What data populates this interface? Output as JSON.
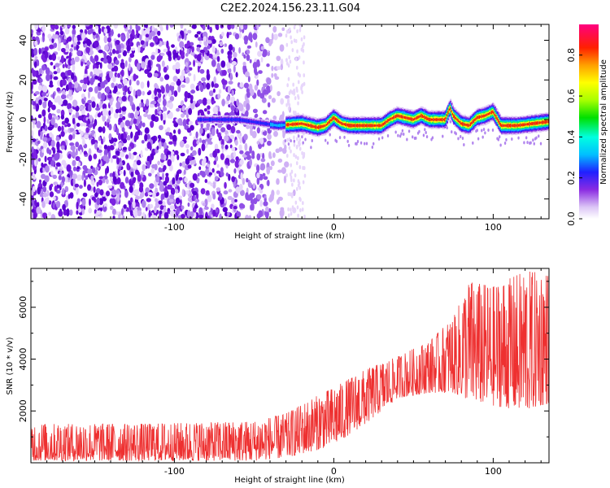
{
  "title": "C2E2.2024.156.23.11.G04",
  "chart_data": [
    {
      "type": "heatmap",
      "title": "C2E2.2024.156.23.11.G04",
      "xlabel": "Height of straight line (km)",
      "ylabel": "Frequency (Hz)",
      "xlim": [
        -190,
        135
      ],
      "ylim": [
        -50,
        48
      ],
      "xticks": [
        -100,
        0,
        100
      ],
      "yticks": [
        -40,
        -20,
        0,
        20,
        40
      ],
      "noise_edge_km": -30,
      "signal_start_km": -85,
      "trace_freq": [
        {
          "x": -85,
          "y": 0
        },
        {
          "x": -60,
          "y": 0
        },
        {
          "x": -35,
          "y": -3
        },
        {
          "x": -20,
          "y": -2
        },
        {
          "x": -10,
          "y": -4
        },
        {
          "x": -5,
          "y": -3
        },
        {
          "x": 0,
          "y": 1
        },
        {
          "x": 5,
          "y": -2
        },
        {
          "x": 10,
          "y": -3
        },
        {
          "x": 20,
          "y": -3
        },
        {
          "x": 30,
          "y": -3
        },
        {
          "x": 35,
          "y": 0
        },
        {
          "x": 40,
          "y": 2
        },
        {
          "x": 50,
          "y": 0
        },
        {
          "x": 55,
          "y": 2
        },
        {
          "x": 60,
          "y": 0
        },
        {
          "x": 65,
          "y": 0
        },
        {
          "x": 70,
          "y": 0
        },
        {
          "x": 73,
          "y": 6
        },
        {
          "x": 75,
          "y": 2
        },
        {
          "x": 80,
          "y": -2
        },
        {
          "x": 85,
          "y": -3
        },
        {
          "x": 90,
          "y": 1
        },
        {
          "x": 95,
          "y": 2
        },
        {
          "x": 100,
          "y": 4
        },
        {
          "x": 105,
          "y": -3
        },
        {
          "x": 115,
          "y": -3
        },
        {
          "x": 125,
          "y": -2
        },
        {
          "x": 135,
          "y": -1
        }
      ],
      "colorbar": {
        "label": "Normalized spectral amplitude",
        "ticks": [
          0.0,
          0.2,
          0.4,
          0.6,
          0.8
        ],
        "range": [
          0.0,
          0.95
        ]
      }
    },
    {
      "type": "line",
      "xlabel": "Height of straight line (km)",
      "ylabel": "SNR (10 * v/v)",
      "xlim": [
        -190,
        135
      ],
      "ylim": [
        0,
        7500
      ],
      "xticks": [
        -100,
        0,
        100
      ],
      "yticks": [
        2000,
        4000,
        6000
      ],
      "color": "#ee3030",
      "envelope": [
        {
          "x": -190,
          "lo": 80,
          "hi": 1500
        },
        {
          "x": -120,
          "lo": 80,
          "hi": 1500
        },
        {
          "x": -50,
          "lo": 80,
          "hi": 1600
        },
        {
          "x": -30,
          "lo": 200,
          "hi": 1900
        },
        {
          "x": -10,
          "lo": 500,
          "hi": 2600
        },
        {
          "x": 0,
          "lo": 700,
          "hi": 2900
        },
        {
          "x": 20,
          "lo": 1500,
          "hi": 3600
        },
        {
          "x": 40,
          "lo": 2500,
          "hi": 4100
        },
        {
          "x": 60,
          "lo": 2700,
          "hi": 4700
        },
        {
          "x": 75,
          "lo": 2700,
          "hi": 5600
        },
        {
          "x": 85,
          "lo": 2400,
          "hi": 7000
        },
        {
          "x": 100,
          "lo": 2200,
          "hi": 6800
        },
        {
          "x": 120,
          "lo": 2000,
          "hi": 7400
        },
        {
          "x": 135,
          "lo": 2300,
          "hi": 7300
        }
      ]
    }
  ]
}
